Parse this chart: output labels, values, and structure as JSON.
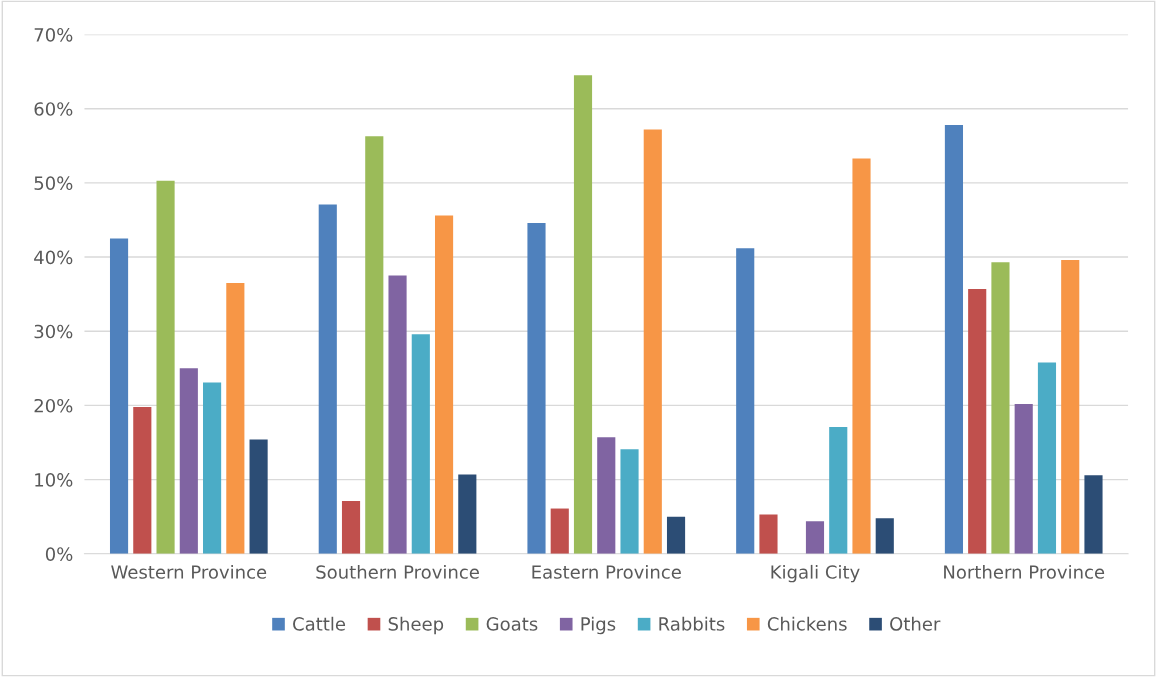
{
  "chart_data": {
    "type": "bar",
    "categories": [
      "Western Province",
      "Southern Province",
      "Eastern Province",
      "Kigali City",
      "Northern Province"
    ],
    "series": [
      {
        "name": "Cattle",
        "color": "#4f81bd",
        "values": [
          42.5,
          47.1,
          44.6,
          41.2,
          57.8
        ]
      },
      {
        "name": "Sheep",
        "color": "#c0504d",
        "values": [
          19.8,
          7.1,
          6.1,
          5.3,
          35.7
        ]
      },
      {
        "name": "Goats",
        "color": "#9bbb59",
        "values": [
          50.3,
          56.3,
          64.5,
          null,
          39.3
        ]
      },
      {
        "name": "Pigs",
        "color": "#8064a2",
        "values": [
          25.0,
          37.5,
          15.7,
          4.4,
          20.2
        ]
      },
      {
        "name": "Rabbits",
        "color": "#4bacc6",
        "values": [
          23.1,
          29.6,
          14.1,
          17.1,
          25.8
        ]
      },
      {
        "name": "Chickens",
        "color": "#f79646",
        "values": [
          36.5,
          45.6,
          57.2,
          53.3,
          39.6
        ]
      },
      {
        "name": "Other",
        "color": "#2c4d75",
        "values": [
          15.4,
          10.7,
          5.0,
          4.8,
          10.6
        ]
      }
    ],
    "ylim": [
      0,
      70
    ],
    "yticks": [
      {
        "value": 0,
        "label": "0%"
      },
      {
        "value": 10,
        "label": "10%"
      },
      {
        "value": 20,
        "label": "20%"
      },
      {
        "value": 30,
        "label": "30%"
      },
      {
        "value": 40,
        "label": "40%"
      },
      {
        "value": 50,
        "label": "50%"
      },
      {
        "value": 60,
        "label": "60%"
      },
      {
        "value": 70,
        "label": "70%"
      }
    ],
    "grid": "y",
    "legend": "bottom"
  }
}
